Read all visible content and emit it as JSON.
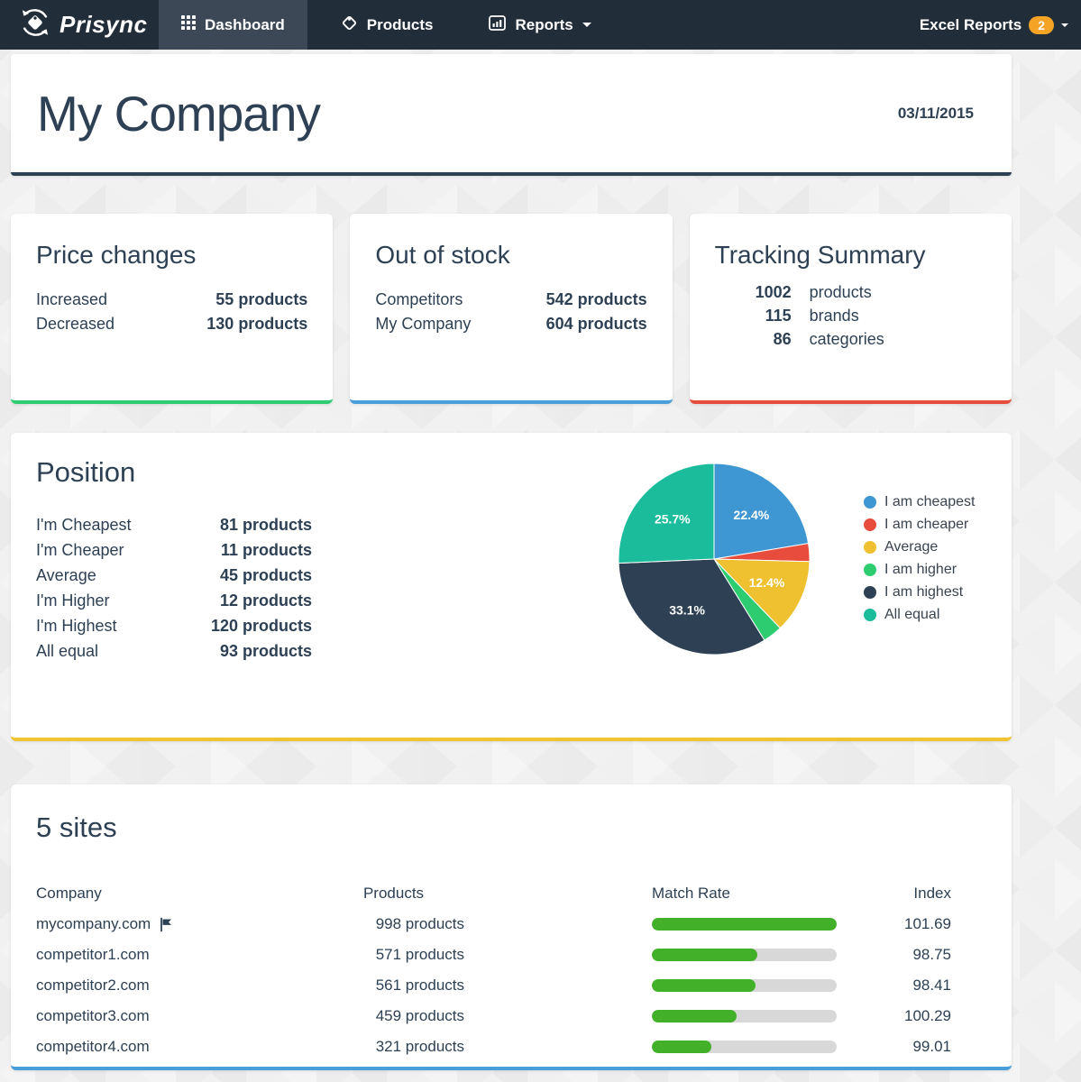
{
  "nav": {
    "brand": "Prisync",
    "items": [
      {
        "label": "Dashboard",
        "active": true
      },
      {
        "label": "Products",
        "active": false
      },
      {
        "label": "Reports",
        "active": false,
        "has_caret": true
      }
    ],
    "excel_reports": {
      "label": "Excel Reports",
      "badge": "2"
    }
  },
  "header": {
    "title": "My Company",
    "date": "03/11/2015"
  },
  "summary_cards": [
    {
      "id": "price-changes",
      "title": "Price changes",
      "accent": "#2ecc71",
      "layout": "label-value",
      "rows": [
        {
          "label": "Increased",
          "value": "55 products"
        },
        {
          "label": "Decreased",
          "value": "130 products"
        }
      ]
    },
    {
      "id": "out-of-stock",
      "title": "Out of stock",
      "accent": "#4a9ed9",
      "layout": "label-value",
      "rows": [
        {
          "label": "Competitors",
          "value": "542 products"
        },
        {
          "label": "My Company",
          "value": "604 products"
        }
      ]
    },
    {
      "id": "tracking-summary",
      "title": "Tracking Summary",
      "accent": "#e74c3c",
      "layout": "number-label",
      "rows": [
        {
          "number": "1002",
          "label": "products"
        },
        {
          "number": "115",
          "label": "brands"
        },
        {
          "number": "86",
          "label": "categories"
        }
      ]
    }
  ],
  "position": {
    "title": "Position",
    "accent": "#f0c330",
    "rows": [
      {
        "label": "I'm Cheapest",
        "value": "81 products"
      },
      {
        "label": "I'm Cheaper",
        "value": "11 products"
      },
      {
        "label": "Average",
        "value": "45 products"
      },
      {
        "label": "I'm Higher",
        "value": "12 products"
      },
      {
        "label": "I'm Highest",
        "value": "120 products"
      },
      {
        "label": "All equal",
        "value": "93 products"
      }
    ],
    "chart_data": {
      "type": "pie",
      "labels": [
        "I am cheapest",
        "I am cheaper",
        "Average",
        "I am higher",
        "I am highest",
        "All equal"
      ],
      "values": [
        81,
        11,
        45,
        12,
        120,
        93
      ],
      "percentages": [
        22.4,
        3.0,
        12.4,
        3.3,
        33.1,
        25.7
      ],
      "slice_labels": [
        "22.4%",
        "",
        "12.4%",
        "",
        "33.1%",
        "25.7%"
      ],
      "colors": [
        "#3e96d2",
        "#e74c3c",
        "#efc02f",
        "#2ecc71",
        "#2e4154",
        "#1abc9c"
      ],
      "legend_position": "right",
      "start_angle_deg": 0,
      "direction": "clockwise"
    }
  },
  "sites": {
    "title": "5 sites",
    "accent": "#4a9ed9",
    "columns": [
      "Company",
      "Products",
      "Match Rate",
      "Index"
    ],
    "rows": [
      {
        "company": "mycompany.com",
        "flag": true,
        "products": "998 products",
        "match_rate_pct": 100,
        "index": "101.69"
      },
      {
        "company": "competitor1.com",
        "flag": false,
        "products": "571 products",
        "match_rate_pct": 57.2,
        "index": "98.75"
      },
      {
        "company": "competitor2.com",
        "flag": false,
        "products": "561 products",
        "match_rate_pct": 56.2,
        "index": "98.41"
      },
      {
        "company": "competitor3.com",
        "flag": false,
        "products": "459 products",
        "match_rate_pct": 46.0,
        "index": "100.29"
      },
      {
        "company": "competitor4.com",
        "flag": false,
        "products": "321 products",
        "match_rate_pct": 32.2,
        "index": "99.01"
      }
    ]
  }
}
